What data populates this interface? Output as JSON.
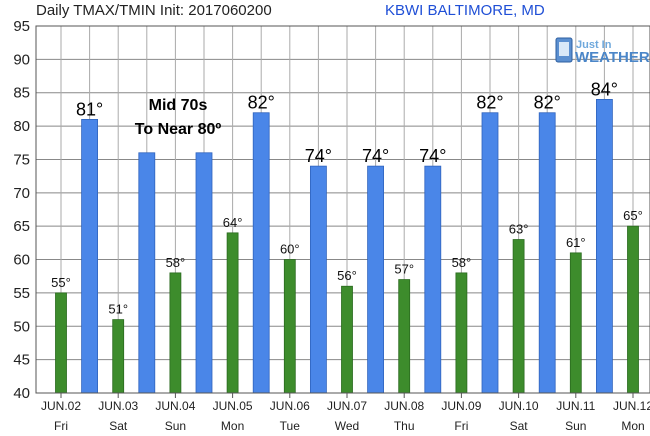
{
  "chart_data": {
    "type": "bar",
    "title": "Daily TMAX/TMIN Init: 2017060200",
    "station": "KBWI BALTIMORE, MD",
    "annotation": [
      "Mid 70s",
      "To Near 80º"
    ],
    "logo": {
      "line1": "Just In",
      "line2": "WEATHER"
    },
    "ylim": [
      40,
      95
    ],
    "yticks": [
      40,
      45,
      50,
      55,
      60,
      65,
      70,
      75,
      80,
      85,
      90,
      95
    ],
    "grid": true,
    "colors": {
      "tmax": "#4a86e8",
      "tmin": "#3d8c2c"
    },
    "days": [
      {
        "date": "JUN.02",
        "dow": "Fri",
        "tmin": 55,
        "tmin_label": "55°",
        "tmax": 81,
        "tmax_label": "81°"
      },
      {
        "date": "JUN.03",
        "dow": "Sat",
        "tmin": 51,
        "tmin_label": "51°",
        "tmax": 76,
        "tmax_label": ""
      },
      {
        "date": "JUN.04",
        "dow": "Sun",
        "tmin": 58,
        "tmin_label": "58°",
        "tmax": 76,
        "tmax_label": ""
      },
      {
        "date": "JUN.05",
        "dow": "Mon",
        "tmin": 64,
        "tmin_label": "64°",
        "tmax": 82,
        "tmax_label": "82°"
      },
      {
        "date": "JUN.06",
        "dow": "Tue",
        "tmin": 60,
        "tmin_label": "60°",
        "tmax": 74,
        "tmax_label": "74°"
      },
      {
        "date": "JUN.07",
        "dow": "Wed",
        "tmin": 56,
        "tmin_label": "56°",
        "tmax": 74,
        "tmax_label": "74°"
      },
      {
        "date": "JUN.08",
        "dow": "Thu",
        "tmin": 57,
        "tmin_label": "57°",
        "tmax": 74,
        "tmax_label": "74°"
      },
      {
        "date": "JUN.09",
        "dow": "Fri",
        "tmin": 58,
        "tmin_label": "58°",
        "tmax": 82,
        "tmax_label": "82°"
      },
      {
        "date": "JUN.10",
        "dow": "Sat",
        "tmin": 63,
        "tmin_label": "63°",
        "tmax": 82,
        "tmax_label": "82°"
      },
      {
        "date": "JUN.11",
        "dow": "Sun",
        "tmin": 61,
        "tmin_label": "61°",
        "tmax": 84,
        "tmax_label": "84°"
      },
      {
        "date": "JUN.12",
        "dow": "Mon",
        "tmin": 65,
        "tmin_label": "65°",
        "tmax": null,
        "tmax_label": ""
      }
    ]
  }
}
